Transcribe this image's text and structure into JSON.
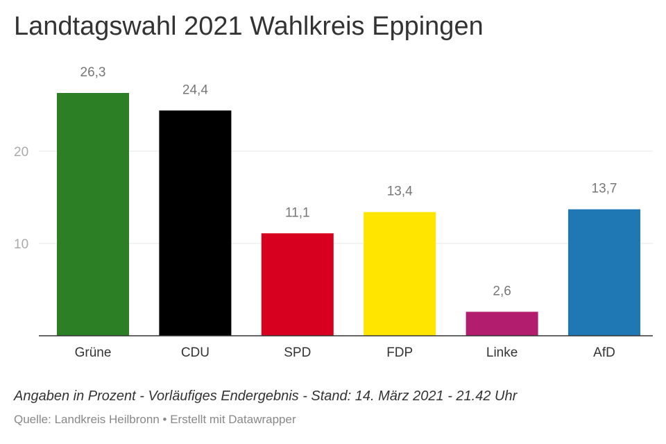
{
  "chart_data": {
    "type": "bar",
    "title": "Landtagswahl 2021 Wahlkreis Eppingen",
    "categories": [
      "Grüne",
      "CDU",
      "SPD",
      "FDP",
      "Linke",
      "AfD"
    ],
    "values": [
      26.3,
      24.4,
      11.1,
      13.4,
      2.6,
      13.7
    ],
    "value_labels": [
      "26,3",
      "24,4",
      "11,1",
      "13,4",
      "2,6",
      "13,7"
    ],
    "colors": [
      "#2d7f26",
      "#000000",
      "#d8001f",
      "#ffe500",
      "#b21e6d",
      "#1f77b4"
    ],
    "yticks": [
      10,
      20
    ],
    "ylim": [
      0,
      26.3
    ],
    "xlabel": "",
    "ylabel": "",
    "grid": true,
    "legend": "none"
  },
  "notes": "Angaben in Prozent - Vorläufiges Endergebnis - Stand: 14. März 2021 - 21.42 Uhr",
  "footer": {
    "source": "Quelle: Landkreis Heilbronn",
    "separator": "•",
    "credit": "Erstellt mit Datawrapper"
  },
  "colors": {
    "text": "#333333",
    "muted": "#888888",
    "grid": "#e6e6e6",
    "baseline": "#333333"
  }
}
